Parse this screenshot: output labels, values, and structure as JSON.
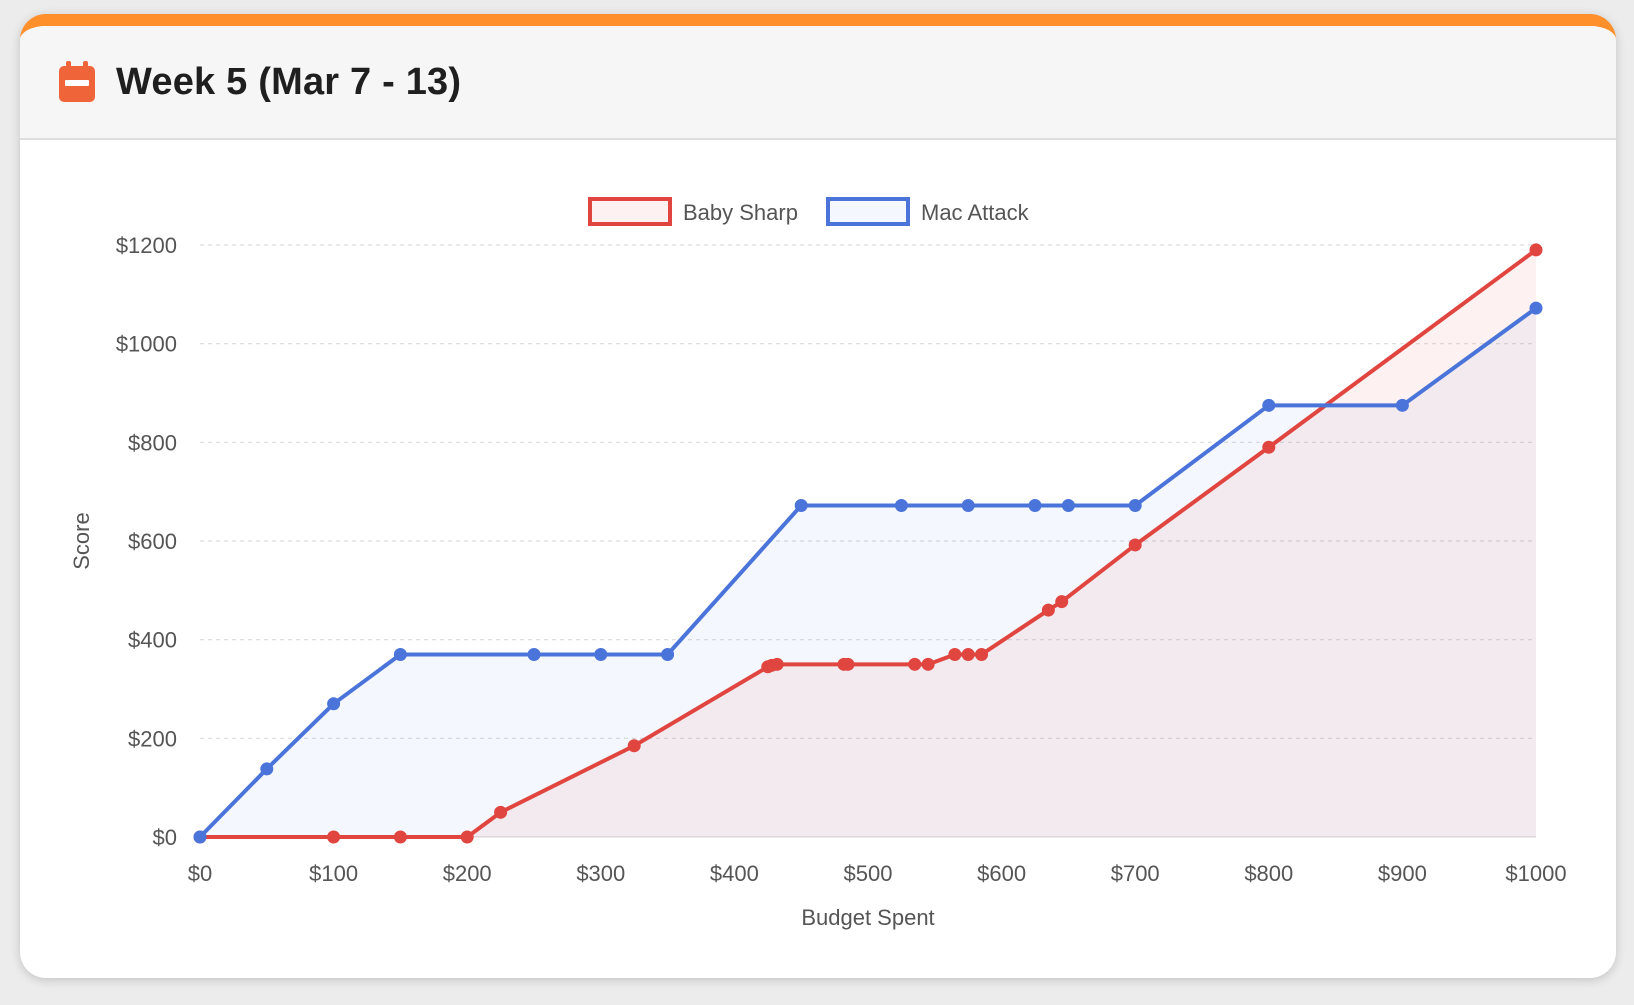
{
  "header": {
    "title": "Week 5 (Mar 7 - 13)",
    "icon": "calendar-icon",
    "accent_color": "#ff8f2b",
    "icon_color": "#f0643a"
  },
  "chart_data": {
    "type": "line",
    "xlabel": "Budget Spent",
    "ylabel": "Score",
    "xlim": [
      0,
      1000
    ],
    "ylim": [
      0,
      1200
    ],
    "x_ticks": [
      0,
      100,
      200,
      300,
      400,
      500,
      600,
      700,
      800,
      900,
      1000
    ],
    "y_ticks": [
      0,
      200,
      400,
      600,
      800,
      1000,
      1200
    ],
    "x_tick_labels": [
      "$0",
      "$100",
      "$200",
      "$300",
      "$400",
      "$500",
      "$600",
      "$700",
      "$800",
      "$900",
      "$1000"
    ],
    "y_tick_labels": [
      "$0",
      "$200",
      "$400",
      "$600",
      "$800",
      "$1000",
      "$1200"
    ],
    "grid": "horizontal dashed",
    "legend_position": "top",
    "fill": true,
    "series": [
      {
        "name": "Baby Sharp",
        "color": "#e0453f",
        "fill_color": "rgba(224,69,63,0.07)",
        "points": [
          [
            0,
            0
          ],
          [
            100,
            0
          ],
          [
            150,
            0
          ],
          [
            200,
            0
          ],
          [
            225,
            50
          ],
          [
            325,
            185
          ],
          [
            425,
            345
          ],
          [
            428,
            348
          ],
          [
            432,
            350
          ],
          [
            482,
            350
          ],
          [
            485,
            350
          ],
          [
            535,
            350
          ],
          [
            545,
            350
          ],
          [
            565,
            370
          ],
          [
            575,
            370
          ],
          [
            585,
            370
          ],
          [
            635,
            460
          ],
          [
            645,
            477
          ],
          [
            700,
            592
          ],
          [
            800,
            790
          ],
          [
            1000,
            1190
          ]
        ]
      },
      {
        "name": "Mac Attack",
        "color": "#4a74d9",
        "fill_color": "rgba(74,116,217,0.06)",
        "points": [
          [
            0,
            0
          ],
          [
            50,
            138
          ],
          [
            100,
            270
          ],
          [
            150,
            370
          ],
          [
            250,
            370
          ],
          [
            300,
            370
          ],
          [
            350,
            370
          ],
          [
            450,
            672
          ],
          [
            525,
            672
          ],
          [
            575,
            672
          ],
          [
            625,
            672
          ],
          [
            650,
            672
          ],
          [
            700,
            672
          ],
          [
            800,
            875
          ],
          [
            900,
            875
          ],
          [
            1000,
            1072
          ]
        ]
      }
    ]
  }
}
